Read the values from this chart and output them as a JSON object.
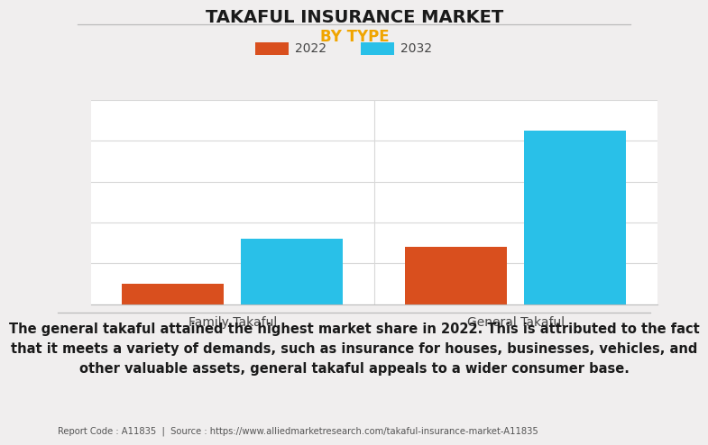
{
  "title": "TAKAFUL INSURANCE MARKET",
  "subtitle": "BY TYPE",
  "categories": [
    "Family Takaful",
    "General Takaful"
  ],
  "series": [
    {
      "label": "2022",
      "values": [
        1.0,
        2.8
      ],
      "color": "#d94f1e"
    },
    {
      "label": "2032",
      "values": [
        3.2,
        8.5
      ],
      "color": "#29c0e8"
    }
  ],
  "ylim": [
    0,
    10
  ],
  "bar_width": 0.18,
  "background_color": "#f0eeee",
  "plot_bg_color": "#ffffff",
  "title_fontsize": 14,
  "subtitle_fontsize": 12,
  "subtitle_color": "#f0a500",
  "legend_fontsize": 10,
  "tick_label_fontsize": 10,
  "grid_color": "#d8d8d8",
  "footer_text": "Report Code : A11835  |  Source : https://www.alliedmarketresearch.com/takaful-insurance-market-A11835",
  "annotation_line1": "The general takaful attained the highest market share in 2022. This is attributed to the fact",
  "annotation_line2": "that it meets a variety of demands, such as insurance for houses, businesses, vehicles, and",
  "annotation_line3": "other valuable assets, general takaful appeals to a wider consumer base.",
  "annotation_fontsize": 10.5,
  "title_color": "#1a1a1a",
  "tick_color": "#444444",
  "separator_color": "#bbbbbb"
}
